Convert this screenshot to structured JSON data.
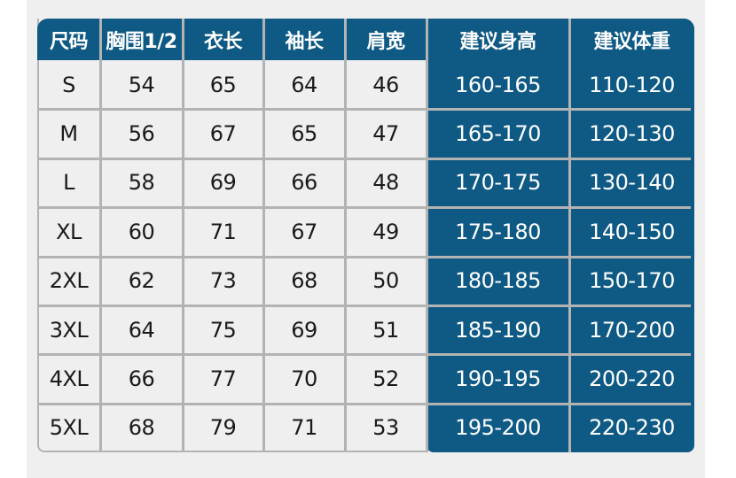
{
  "colors": {
    "header_bg": "#0f5a84",
    "cell_bg": "#efefef",
    "grid": "#b3b3b3"
  },
  "headers": [
    "尺码",
    "胸围1/2",
    "衣长",
    "袖长",
    "肩宽",
    "建议身高",
    "建议体重"
  ],
  "rows": [
    [
      "S",
      "54",
      "65",
      "64",
      "46",
      "160-165",
      "110-120"
    ],
    [
      "M",
      "56",
      "67",
      "65",
      "47",
      "165-170",
      "120-130"
    ],
    [
      "L",
      "58",
      "69",
      "66",
      "48",
      "170-175",
      "130-140"
    ],
    [
      "XL",
      "60",
      "71",
      "67",
      "49",
      "175-180",
      "140-150"
    ],
    [
      "2XL",
      "62",
      "73",
      "68",
      "50",
      "180-185",
      "150-170"
    ],
    [
      "3XL",
      "64",
      "75",
      "69",
      "51",
      "185-190",
      "170-200"
    ],
    [
      "4XL",
      "66",
      "77",
      "70",
      "52",
      "190-195",
      "200-220"
    ],
    [
      "5XL",
      "68",
      "79",
      "71",
      "53",
      "195-200",
      "220-230"
    ]
  ]
}
